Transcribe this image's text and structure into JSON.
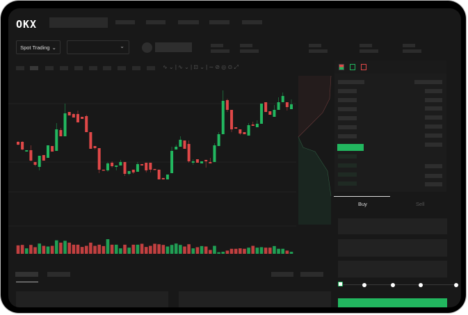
{
  "header": {
    "logo": "OKX"
  },
  "toolbar": {
    "spot_trading_label": "Spot Trading",
    "chevron": "⌄"
  },
  "order_form": {
    "tabs": [
      {
        "label": "Buy",
        "active": true
      },
      {
        "label": "Sell",
        "active": false
      }
    ],
    "slider_level": 0
  },
  "colors": {
    "up": "#22b75f",
    "down": "#e04848",
    "background": "#181818"
  },
  "chart_data": {
    "type": "candlestick",
    "columns": [
      "open",
      "high",
      "low",
      "close"
    ],
    "ylim": [
      10,
      180
    ],
    "candles": [
      [
        97,
        98,
        92,
        93
      ],
      [
        97,
        98,
        85,
        86
      ],
      [
        83,
        85,
        83,
        85
      ],
      [
        85,
        92,
        69,
        70
      ],
      [
        68,
        68,
        62,
        64
      ],
      [
        61,
        77,
        56,
        77
      ],
      [
        78,
        78,
        70,
        70
      ],
      [
        74,
        92,
        74,
        92
      ],
      [
        91,
        91,
        83,
        83
      ],
      [
        84,
        124,
        84,
        115
      ],
      [
        114,
        117,
        105,
        105
      ],
      [
        105,
        152,
        105,
        138
      ],
      [
        140,
        140,
        135,
        135
      ],
      [
        137,
        138,
        132,
        132
      ],
      [
        137,
        142,
        125,
        125
      ],
      [
        133,
        133,
        130,
        130
      ],
      [
        134,
        136,
        111,
        111
      ],
      [
        111,
        111,
        87,
        87
      ],
      [
        91,
        91,
        86,
        88
      ],
      [
        88,
        88,
        52,
        57
      ],
      [
        57,
        57,
        56,
        56
      ],
      [
        56,
        68,
        54,
        66
      ],
      [
        67,
        69,
        60,
        62
      ],
      [
        61,
        63,
        56,
        63
      ],
      [
        63,
        71,
        63,
        68
      ],
      [
        68,
        68,
        48,
        51
      ],
      [
        51,
        55,
        49,
        55
      ],
      [
        57,
        57,
        51,
        53
      ],
      [
        54,
        68,
        54,
        65
      ],
      [
        65,
        65,
        63,
        63
      ],
      [
        67,
        67,
        53,
        56
      ],
      [
        67,
        67,
        53,
        57
      ],
      [
        58,
        58,
        57,
        57
      ],
      [
        57,
        57,
        43,
        43
      ],
      [
        45,
        45,
        43,
        43
      ],
      [
        43,
        50,
        43,
        50
      ],
      [
        52,
        90,
        52,
        84
      ],
      [
        86,
        93,
        86,
        90
      ],
      [
        90,
        105,
        90,
        100
      ],
      [
        99,
        99,
        87,
        87
      ],
      [
        94,
        99,
        67,
        69
      ],
      [
        67,
        72,
        64,
        69
      ],
      [
        72,
        72,
        67,
        67
      ],
      [
        66,
        69,
        66,
        69
      ],
      [
        71,
        71,
        60,
        69
      ],
      [
        68,
        74,
        66,
        66
      ],
      [
        68,
        95,
        68,
        92
      ],
      [
        91,
        111,
        91,
        108
      ],
      [
        108,
        171,
        108,
        156
      ],
      [
        157,
        159,
        140,
        143
      ],
      [
        143,
        143,
        111,
        115
      ],
      [
        118,
        118,
        116,
        116
      ],
      [
        115,
        115,
        107,
        109
      ],
      [
        111,
        111,
        108,
        108
      ],
      [
        106,
        124,
        106,
        121
      ],
      [
        122,
        126,
        120,
        120
      ],
      [
        118,
        128,
        118,
        123
      ],
      [
        123,
        152,
        123,
        152
      ],
      [
        154,
        154,
        140,
        140
      ],
      [
        141,
        141,
        136,
        136
      ],
      [
        133,
        150,
        133,
        143
      ],
      [
        143,
        161,
        143,
        154
      ],
      [
        154,
        168,
        154,
        163
      ],
      [
        154,
        154,
        142,
        147
      ],
      [
        144,
        158,
        144,
        151
      ]
    ],
    "volume": [
      37,
      39,
      24,
      39,
      29,
      45,
      35,
      32,
      35,
      59,
      49,
      57,
      49,
      40,
      40,
      30,
      35,
      49,
      35,
      40,
      34,
      64,
      40,
      40,
      24,
      40,
      27,
      40,
      40,
      44,
      30,
      35,
      44,
      42,
      39,
      32,
      39,
      45,
      39,
      32,
      42,
      24,
      29,
      34,
      32,
      17,
      35,
      7,
      9,
      14,
      22,
      22,
      24,
      22,
      27,
      35,
      27,
      29,
      27,
      27,
      34,
      22,
      22,
      14,
      9
    ],
    "grid": true
  }
}
